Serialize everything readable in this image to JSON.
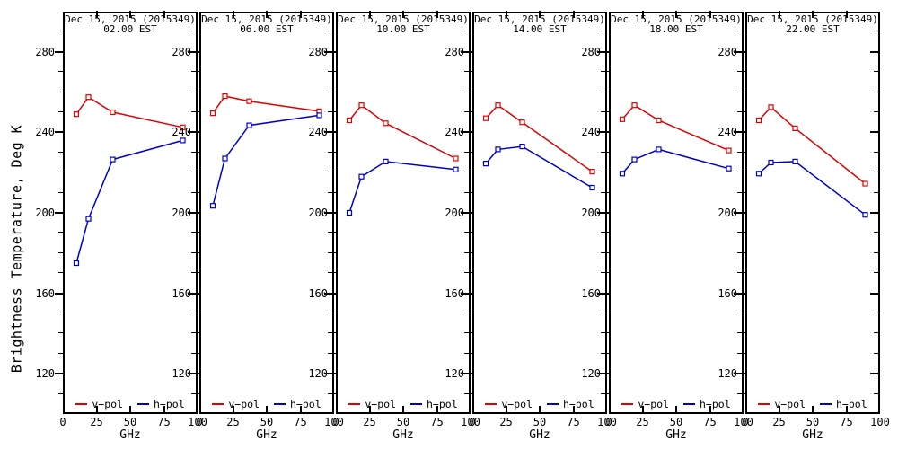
{
  "figure": {
    "y_axis_label": "Brightness Temperature, Deg K",
    "x_axis_label": "GHz",
    "background": "#ffffff",
    "axis_color": "#000000",
    "vpol_color": "#e00000",
    "hpol_color": "#0000cc",
    "legend": {
      "vpol_label": "v−pol",
      "hpol_label": "h−pol"
    }
  },
  "chart_data": [
    {
      "type": "line",
      "title": "Dec 15, 2015 (2015349)",
      "subtitle": "02.00 EST",
      "xlabel": "GHz",
      "ylabel": "Brightness Temperature, Deg K",
      "x": [
        10,
        19,
        37,
        89
      ],
      "xlim": [
        0,
        100
      ],
      "ylim": [
        100,
        300
      ],
      "xticks": [
        0,
        25,
        50,
        75,
        100
      ],
      "yticks": [
        120,
        160,
        200,
        240,
        280
      ],
      "grid": false,
      "legend_position": "bottom",
      "series": [
        {
          "name": "v−pol",
          "color": "#e00000",
          "values": [
            249,
            257.5,
            250,
            242.5
          ]
        },
        {
          "name": "h−pol",
          "color": "#0000cc",
          "values": [
            175,
            197,
            226.5,
            236
          ]
        }
      ]
    },
    {
      "type": "line",
      "title": "Dec 15, 2015 (2015349)",
      "subtitle": "06.00 EST",
      "xlabel": "GHz",
      "ylabel": "Brightness Temperature, Deg K",
      "x": [
        10,
        19,
        37,
        89
      ],
      "xlim": [
        0,
        100
      ],
      "ylim": [
        100,
        300
      ],
      "xticks": [
        0,
        25,
        50,
        75,
        100
      ],
      "yticks": [
        120,
        160,
        200,
        240,
        280
      ],
      "grid": false,
      "legend_position": "bottom",
      "series": [
        {
          "name": "v−pol",
          "color": "#e00000",
          "values": [
            249.5,
            258,
            255.5,
            250.5
          ]
        },
        {
          "name": "h−pol",
          "color": "#0000cc",
          "values": [
            203.5,
            227,
            243.5,
            248.5
          ]
        }
      ]
    },
    {
      "type": "line",
      "title": "Dec 15, 2015 (2015349)",
      "subtitle": "10.00 EST",
      "xlabel": "GHz",
      "ylabel": "Brightness Temperature, Deg K",
      "x": [
        10,
        19,
        37,
        89
      ],
      "xlim": [
        0,
        100
      ],
      "ylim": [
        100,
        300
      ],
      "xticks": [
        0,
        25,
        50,
        75,
        100
      ],
      "yticks": [
        120,
        160,
        200,
        240,
        280
      ],
      "grid": false,
      "legend_position": "bottom",
      "series": [
        {
          "name": "v−pol",
          "color": "#e00000",
          "values": [
            246,
            253.5,
            244.5,
            227
          ]
        },
        {
          "name": "h−pol",
          "color": "#0000cc",
          "values": [
            200,
            218,
            225.5,
            221.5
          ]
        }
      ]
    },
    {
      "type": "line",
      "title": "Dec 15, 2015 (2015349)",
      "subtitle": "14.00 EST",
      "xlabel": "GHz",
      "ylabel": "Brightness Temperature, Deg K",
      "x": [
        10,
        19,
        37,
        89
      ],
      "xlim": [
        0,
        100
      ],
      "ylim": [
        100,
        300
      ],
      "xticks": [
        0,
        25,
        50,
        75,
        100
      ],
      "yticks": [
        120,
        160,
        200,
        240,
        280
      ],
      "grid": false,
      "legend_position": "bottom",
      "series": [
        {
          "name": "v−pol",
          "color": "#e00000",
          "values": [
            247,
            253.5,
            245,
            220.5
          ]
        },
        {
          "name": "h−pol",
          "color": "#0000cc",
          "values": [
            224.5,
            231.5,
            233,
            212.5
          ]
        }
      ]
    },
    {
      "type": "line",
      "title": "Dec 15, 2015 (2015349)",
      "subtitle": "18.00 EST",
      "xlabel": "GHz",
      "ylabel": "Brightness Temperature, Deg K",
      "x": [
        10,
        19,
        37,
        89
      ],
      "xlim": [
        0,
        100
      ],
      "ylim": [
        100,
        300
      ],
      "xticks": [
        0,
        25,
        50,
        75,
        100
      ],
      "yticks": [
        120,
        160,
        200,
        240,
        280
      ],
      "grid": false,
      "legend_position": "bottom",
      "series": [
        {
          "name": "v−pol",
          "color": "#e00000",
          "values": [
            246.5,
            253.5,
            246,
            231
          ]
        },
        {
          "name": "h−pol",
          "color": "#0000cc",
          "values": [
            219.5,
            226.5,
            231.5,
            222
          ]
        }
      ]
    },
    {
      "type": "line",
      "title": "Dec 15, 2015 (2015349)",
      "subtitle": "22.00 EST",
      "xlabel": "GHz",
      "ylabel": "Brightness Temperature, Deg K",
      "x": [
        10,
        19,
        37,
        89
      ],
      "xlim": [
        0,
        100
      ],
      "ylim": [
        100,
        300
      ],
      "xticks": [
        0,
        25,
        50,
        75,
        100
      ],
      "yticks": [
        120,
        160,
        200,
        240,
        280
      ],
      "grid": false,
      "legend_position": "bottom",
      "series": [
        {
          "name": "v−pol",
          "color": "#e00000",
          "values": [
            246,
            252.5,
            242,
            214.5
          ]
        },
        {
          "name": "h−pol",
          "color": "#0000cc",
          "values": [
            219.5,
            225,
            225.5,
            199
          ]
        }
      ]
    }
  ]
}
